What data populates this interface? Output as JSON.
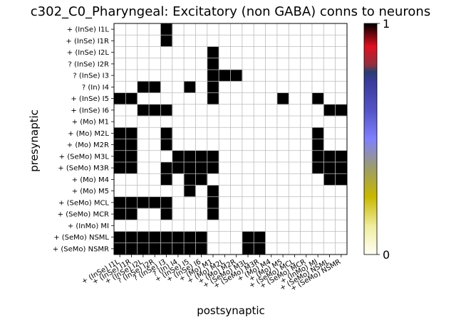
{
  "chart_data": {
    "type": "heatmap",
    "title": "c302_C0_Pharyngeal: Excitatory (non GABA) conns to neurons",
    "xlabel": "postsynaptic",
    "ylabel": "presynaptic",
    "rows": [
      "+ (InSe) I1L",
      "+ (InSe) I1R",
      "+ (InSe) I2L",
      "? (InSe) I2R",
      "? (InSe) I3",
      "? (In) I4",
      "+ (InSe) I5",
      "+ (InSe) I6",
      "+ (Mo) M1",
      "+ (Mo) M2L",
      "+ (Mo) M2R",
      "+ (SeMo) M3L",
      "+ (SeMo) M3R",
      "+ (Mo) M4",
      "+ (Mo) M5",
      "+ (SeMo) MCL",
      "+ (SeMo) MCR",
      "+ (InMo) MI",
      "+ (SeMo) NSML",
      "+ (SeMo) NSMR"
    ],
    "columns": [
      "+ (InSe) I1L",
      "+ (InSe) I1R",
      "+ (InSe) I2L",
      "? (InSe) I2R",
      "? (InSe) I3",
      "? (In) I4",
      "+ (InSe) I5",
      "+ (InSe) I6",
      "+ (Mo) M1",
      "+ (Mo) M2L",
      "+ (Mo) M2R",
      "+ (SeMo) M3L",
      "+ (SeMo) M3R",
      "+ (Mo) M4",
      "+ (Mo) M5",
      "+ (SeMo) MCL",
      "+ (SeMo) MCR",
      "+ (InMo) MI",
      "+ (SeMo) NSML",
      "+ (SeMo) NSMR"
    ],
    "values": [
      [
        0,
        0,
        0,
        0,
        1,
        0,
        0,
        0,
        0,
        0,
        0,
        0,
        0,
        0,
        0,
        0,
        0,
        0,
        0,
        0
      ],
      [
        0,
        0,
        0,
        0,
        1,
        0,
        0,
        0,
        0,
        0,
        0,
        0,
        0,
        0,
        0,
        0,
        0,
        0,
        0,
        0
      ],
      [
        0,
        0,
        0,
        0,
        0,
        0,
        0,
        0,
        1,
        0,
        0,
        0,
        0,
        0,
        0,
        0,
        0,
        0,
        0,
        0
      ],
      [
        0,
        0,
        0,
        0,
        0,
        0,
        0,
        0,
        1,
        0,
        0,
        0,
        0,
        0,
        0,
        0,
        0,
        0,
        0,
        0
      ],
      [
        0,
        0,
        0,
        0,
        0,
        0,
        0,
        0,
        1,
        1,
        1,
        0,
        0,
        0,
        0,
        0,
        0,
        0,
        0,
        0
      ],
      [
        0,
        0,
        1,
        1,
        0,
        0,
        1,
        0,
        1,
        0,
        0,
        0,
        0,
        0,
        0,
        0,
        0,
        0,
        0,
        0
      ],
      [
        1,
        1,
        0,
        0,
        0,
        0,
        0,
        0,
        1,
        0,
        0,
        0,
        0,
        0,
        1,
        0,
        0,
        1,
        0,
        0
      ],
      [
        0,
        0,
        1,
        1,
        1,
        0,
        0,
        0,
        0,
        0,
        0,
        0,
        0,
        0,
        0,
        0,
        0,
        0,
        1,
        1
      ],
      [
        0,
        0,
        0,
        0,
        0,
        0,
        0,
        0,
        0,
        0,
        0,
        0,
        0,
        0,
        0,
        0,
        0,
        0,
        0,
        0
      ],
      [
        1,
        1,
        0,
        0,
        1,
        0,
        0,
        0,
        0,
        0,
        0,
        0,
        0,
        0,
        0,
        0,
        0,
        1,
        0,
        0
      ],
      [
        1,
        1,
        0,
        0,
        1,
        0,
        0,
        0,
        0,
        0,
        0,
        0,
        0,
        0,
        0,
        0,
        0,
        1,
        0,
        0
      ],
      [
        1,
        1,
        0,
        0,
        0,
        1,
        1,
        1,
        1,
        0,
        0,
        0,
        0,
        0,
        0,
        0,
        0,
        1,
        1,
        1
      ],
      [
        1,
        1,
        0,
        0,
        1,
        1,
        1,
        1,
        1,
        0,
        0,
        0,
        0,
        0,
        0,
        0,
        0,
        1,
        1,
        1
      ],
      [
        0,
        0,
        0,
        0,
        1,
        0,
        1,
        1,
        0,
        0,
        0,
        0,
        0,
        0,
        0,
        0,
        0,
        0,
        1,
        1
      ],
      [
        0,
        0,
        0,
        0,
        0,
        0,
        1,
        0,
        1,
        0,
        0,
        0,
        0,
        0,
        0,
        0,
        0,
        0,
        0,
        0
      ],
      [
        1,
        1,
        1,
        1,
        1,
        0,
        0,
        0,
        1,
        0,
        0,
        0,
        0,
        0,
        0,
        0,
        0,
        0,
        0,
        0
      ],
      [
        1,
        1,
        0,
        0,
        1,
        0,
        0,
        0,
        1,
        0,
        0,
        0,
        0,
        0,
        0,
        0,
        0,
        0,
        0,
        0
      ],
      [
        0,
        0,
        0,
        0,
        0,
        0,
        0,
        0,
        0,
        0,
        0,
        0,
        0,
        0,
        0,
        0,
        0,
        0,
        0,
        0
      ],
      [
        1,
        1,
        1,
        1,
        1,
        1,
        1,
        1,
        0,
        0,
        0,
        1,
        1,
        0,
        0,
        0,
        0,
        0,
        0,
        0
      ],
      [
        1,
        1,
        1,
        1,
        1,
        1,
        1,
        1,
        0,
        0,
        0,
        1,
        1,
        0,
        0,
        0,
        0,
        0,
        0,
        0
      ]
    ],
    "colorbar": {
      "min": 0,
      "max": 1,
      "tick_labels": [
        "0",
        "1"
      ],
      "stops": [
        {
          "pos": 0.0,
          "color": "#fffff5"
        },
        {
          "pos": 0.12,
          "color": "#f0eda0"
        },
        {
          "pos": 0.25,
          "color": "#c8b800"
        },
        {
          "pos": 0.37,
          "color": "#9e9e66"
        },
        {
          "pos": 0.5,
          "color": "#8080ff"
        },
        {
          "pos": 0.62,
          "color": "#5555c8"
        },
        {
          "pos": 0.75,
          "color": "#3a3a9a"
        },
        {
          "pos": 0.79,
          "color": "#2a3c70"
        },
        {
          "pos": 0.82,
          "color": "#903040"
        },
        {
          "pos": 0.9,
          "color": "#e01020"
        },
        {
          "pos": 1.0,
          "color": "#000000"
        }
      ]
    },
    "grid": true,
    "filled_color": "#000000",
    "empty_color": "#ffffff",
    "grid_color": "#bbbbbb"
  }
}
